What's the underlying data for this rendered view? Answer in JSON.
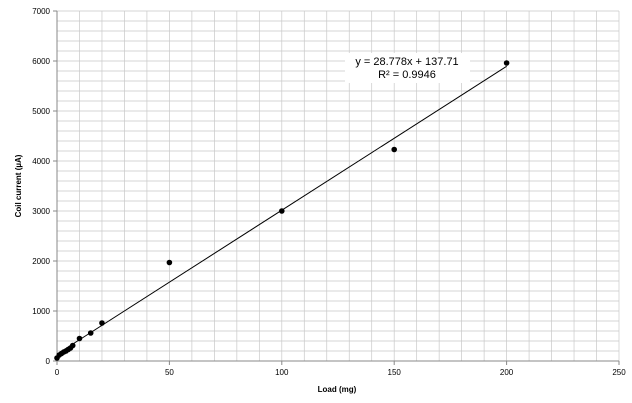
{
  "chart_data": {
    "type": "scatter",
    "xlabel": "Load (mg)",
    "ylabel": "Coil current (µA)",
    "xlim": [
      0,
      250
    ],
    "ylim": [
      0,
      7000
    ],
    "x_major_ticks": [
      0,
      50,
      100,
      150,
      200,
      250
    ],
    "y_major_ticks": [
      0,
      1000,
      2000,
      3000,
      4000,
      5000,
      6000,
      7000
    ],
    "x_minor_step": 10,
    "y_minor_step": 200,
    "grid": true,
    "series": [
      {
        "x": [
          0,
          1,
          2,
          3,
          4,
          5,
          6,
          7,
          10,
          15,
          20,
          50,
          100,
          150,
          200
        ],
        "y": [
          60,
          120,
          150,
          180,
          200,
          230,
          260,
          310,
          450,
          560,
          760,
          1970,
          3000,
          4230,
          5960
        ],
        "marker_color": "#000000"
      }
    ],
    "trendline": {
      "type": "linear",
      "slope": 28.778,
      "intercept": 137.71,
      "x_range": [
        0,
        200
      ],
      "equation_label": "y = 28.778x + 137.71",
      "r2_label": "R² = 0.9946"
    }
  },
  "colors": {
    "grid": "#c8c8c8",
    "axis": "#888888",
    "marker": "#000000",
    "trendline": "#000000"
  }
}
